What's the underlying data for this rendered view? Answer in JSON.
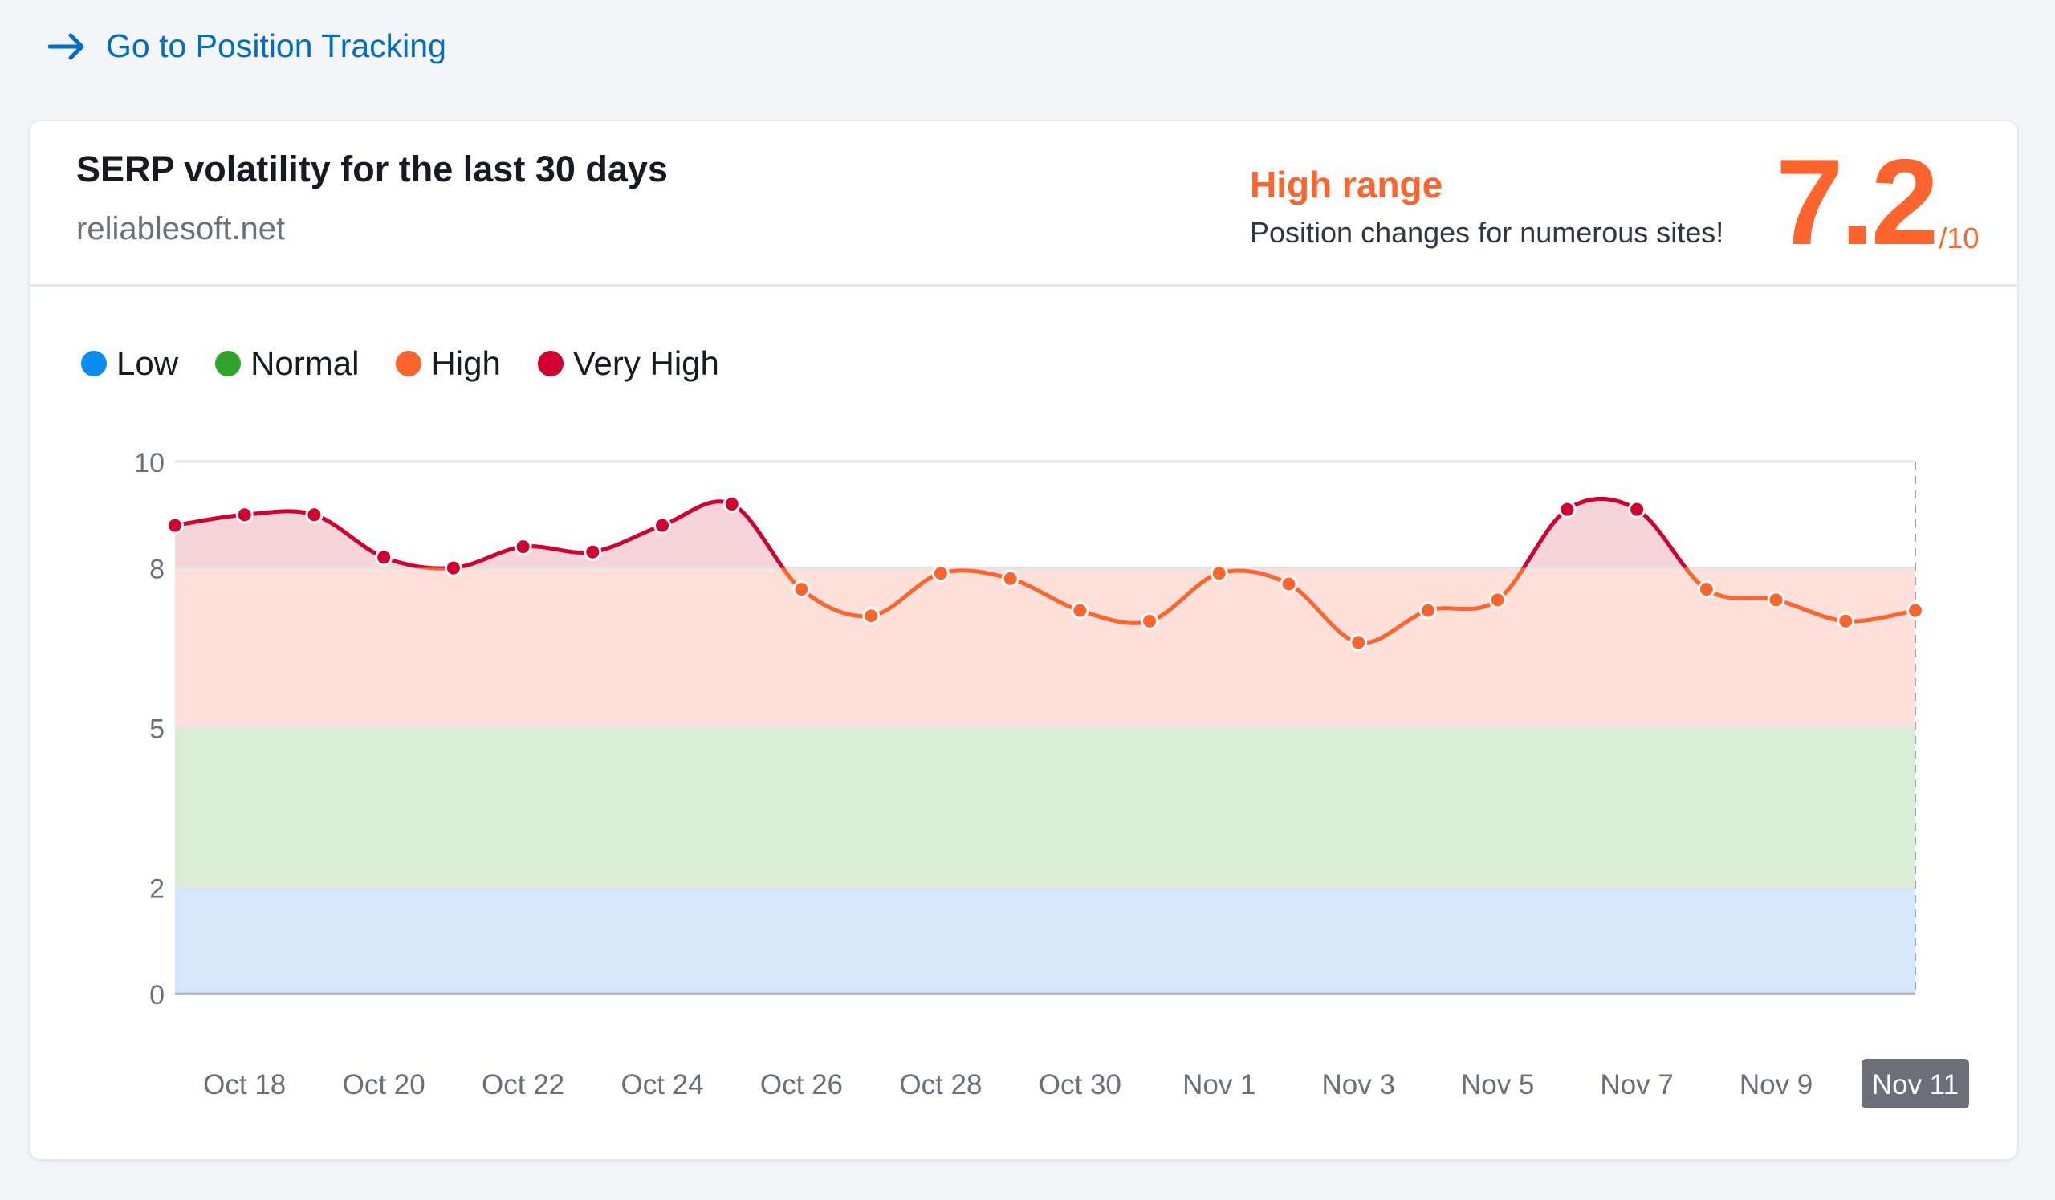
{
  "link": {
    "label": "Go to Position Tracking",
    "icon": "arrow-right-icon"
  },
  "card": {
    "title": "SERP volatility for the last 30 days",
    "domain": "reliablesoft.net",
    "range_label": "High range",
    "range_desc": "Position changes for numerous sites!",
    "score": "7.2",
    "score_max": "/10"
  },
  "legend": [
    {
      "label": "Low",
      "color": "#0a8cf0"
    },
    {
      "label": "Normal",
      "color": "#2fa42a"
    },
    {
      "label": "High",
      "color": "#ff642d"
    },
    {
      "label": "Very High",
      "color": "#d1002f"
    }
  ],
  "colors": {
    "accent": "#ff642d",
    "link": "#006dca",
    "very_high_line": "#d1002f",
    "high_line": "#ff642d",
    "band_low": "#d5e7fb",
    "band_normal": "#d9edd4",
    "band_high": "#fde0d9",
    "band_very_high": "#f5d5da"
  },
  "chart_data": {
    "type": "line",
    "x": [
      "Oct 17",
      "Oct 18",
      "Oct 19",
      "Oct 20",
      "Oct 21",
      "Oct 22",
      "Oct 23",
      "Oct 24",
      "Oct 25",
      "Oct 26",
      "Oct 27",
      "Oct 28",
      "Oct 29",
      "Oct 30",
      "Oct 31",
      "Nov 1",
      "Nov 2",
      "Nov 3",
      "Nov 4",
      "Nov 5",
      "Nov 6",
      "Nov 7",
      "Nov 8",
      "Nov 9",
      "Nov 10",
      "Nov 11"
    ],
    "values": [
      8.8,
      9.0,
      9.0,
      8.2,
      8.0,
      8.4,
      8.3,
      8.8,
      9.2,
      7.6,
      7.1,
      7.9,
      7.8,
      7.2,
      7.0,
      7.9,
      7.7,
      6.6,
      7.2,
      7.4,
      9.1,
      9.1,
      7.6,
      7.4,
      7.0,
      7.2
    ],
    "tick_labels": [
      "Oct 18",
      "Oct 20",
      "Oct 22",
      "Oct 24",
      "Oct 26",
      "Oct 28",
      "Oct 30",
      "Nov 1",
      "Nov 3",
      "Nov 5",
      "Nov 7",
      "Nov 9",
      "Nov 11"
    ],
    "selected_tick": "Nov 11",
    "y_ticks": [
      0,
      2,
      5,
      8,
      10
    ],
    "ylim": [
      0,
      10
    ],
    "bands": [
      {
        "name": "Low",
        "from": 0,
        "to": 2
      },
      {
        "name": "Normal",
        "from": 2,
        "to": 5
      },
      {
        "name": "High",
        "from": 5,
        "to": 8
      },
      {
        "name": "Very High",
        "from": 8,
        "to": 10
      }
    ],
    "legend_position": "top-left",
    "grid": true
  }
}
